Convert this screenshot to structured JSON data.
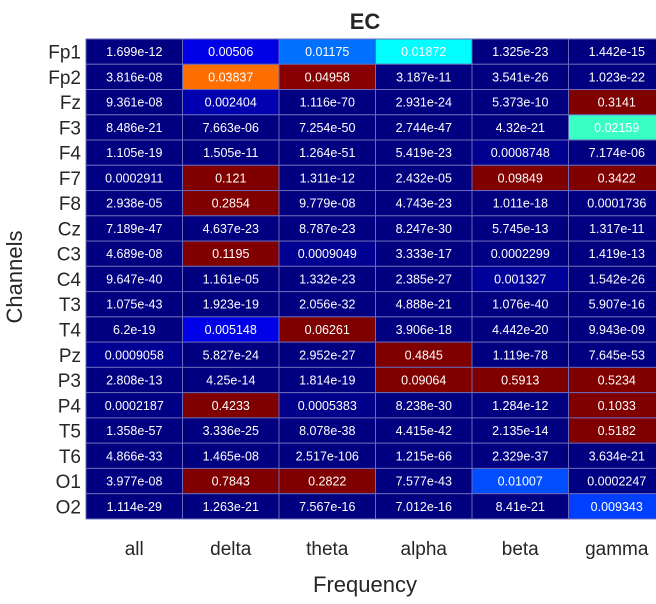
{
  "chart_data": {
    "type": "heatmap",
    "title": "EC",
    "xlabel": "Frequency",
    "ylabel": "Channels",
    "columns": [
      "all",
      "delta",
      "theta",
      "alpha",
      "beta",
      "gamma"
    ],
    "rows": [
      "Fp1",
      "Fp2",
      "Fz",
      "F3",
      "F4",
      "F7",
      "F8",
      "Cz",
      "C3",
      "C4",
      "T3",
      "T4",
      "Pz",
      "P3",
      "P4",
      "T5",
      "T6",
      "O1",
      "O2"
    ],
    "cells": [
      [
        "1.699e-12",
        "0.00506",
        "0.01175",
        "0.01872",
        "1.325e-23",
        "1.442e-15"
      ],
      [
        "3.816e-08",
        "0.03837",
        "0.04958",
        "3.187e-11",
        "3.541e-26",
        "1.023e-22"
      ],
      [
        "9.361e-08",
        "0.002404",
        "1.116e-70",
        "2.931e-24",
        "5.373e-10",
        "0.3141"
      ],
      [
        "8.486e-21",
        "7.663e-06",
        "7.254e-50",
        "2.744e-47",
        "4.32e-21",
        "0.02159"
      ],
      [
        "1.105e-19",
        "1.505e-11",
        "1.264e-51",
        "5.419e-23",
        "0.0008748",
        "7.174e-06"
      ],
      [
        "0.0002911",
        "0.121",
        "1.311e-12",
        "2.432e-05",
        "0.09849",
        "0.3422"
      ],
      [
        "2.938e-05",
        "0.2854",
        "9.779e-08",
        "4.743e-23",
        "1.011e-18",
        "0.0001736"
      ],
      [
        "7.189e-47",
        "4.637e-23",
        "8.787e-23",
        "8.247e-30",
        "5.745e-13",
        "1.317e-11"
      ],
      [
        "4.689e-08",
        "0.1195",
        "0.0009049",
        "3.333e-17",
        "0.0002299",
        "1.419e-13"
      ],
      [
        "9.647e-40",
        "1.161e-05",
        "1.332e-23",
        "2.385e-27",
        "0.001327",
        "1.542e-26"
      ],
      [
        "1.075e-43",
        "1.923e-19",
        "2.056e-32",
        "4.888e-21",
        "1.076e-40",
        "5.907e-16"
      ],
      [
        "6.2e-19",
        "0.005148",
        "0.06261",
        "3.906e-18",
        "4.442e-20",
        "9.943e-09"
      ],
      [
        "0.0009058",
        "5.827e-24",
        "2.952e-27",
        "0.4845",
        "1.119e-78",
        "7.645e-53"
      ],
      [
        "2.808e-13",
        "4.25e-14",
        "1.814e-19",
        "0.09064",
        "0.5913",
        "0.5234"
      ],
      [
        "0.0002187",
        "0.4233",
        "0.0005383",
        "8.238e-30",
        "1.284e-12",
        "0.1033"
      ],
      [
        "1.358e-57",
        "3.336e-25",
        "8.078e-38",
        "4.415e-42",
        "2.135e-14",
        "0.5182"
      ],
      [
        "4.866e-33",
        "1.465e-08",
        "2.517e-106",
        "1.215e-66",
        "2.329e-37",
        "3.634e-21"
      ],
      [
        "3.977e-08",
        "0.7843",
        "0.2822",
        "7.577e-43",
        "0.01007",
        "0.0002247"
      ],
      [
        "1.114e-29",
        "1.263e-21",
        "7.567e-16",
        "7.012e-16",
        "8.41e-21",
        "0.009343"
      ]
    ],
    "colormap": "jet",
    "color_limits": [
      0,
      0.05
    ],
    "grid": true,
    "colors": {
      "low": "#00008f",
      "high": "#800000",
      "grid_line": "#6a6ab8",
      "text": "#ffffff",
      "axis_text": "#262626"
    }
  }
}
